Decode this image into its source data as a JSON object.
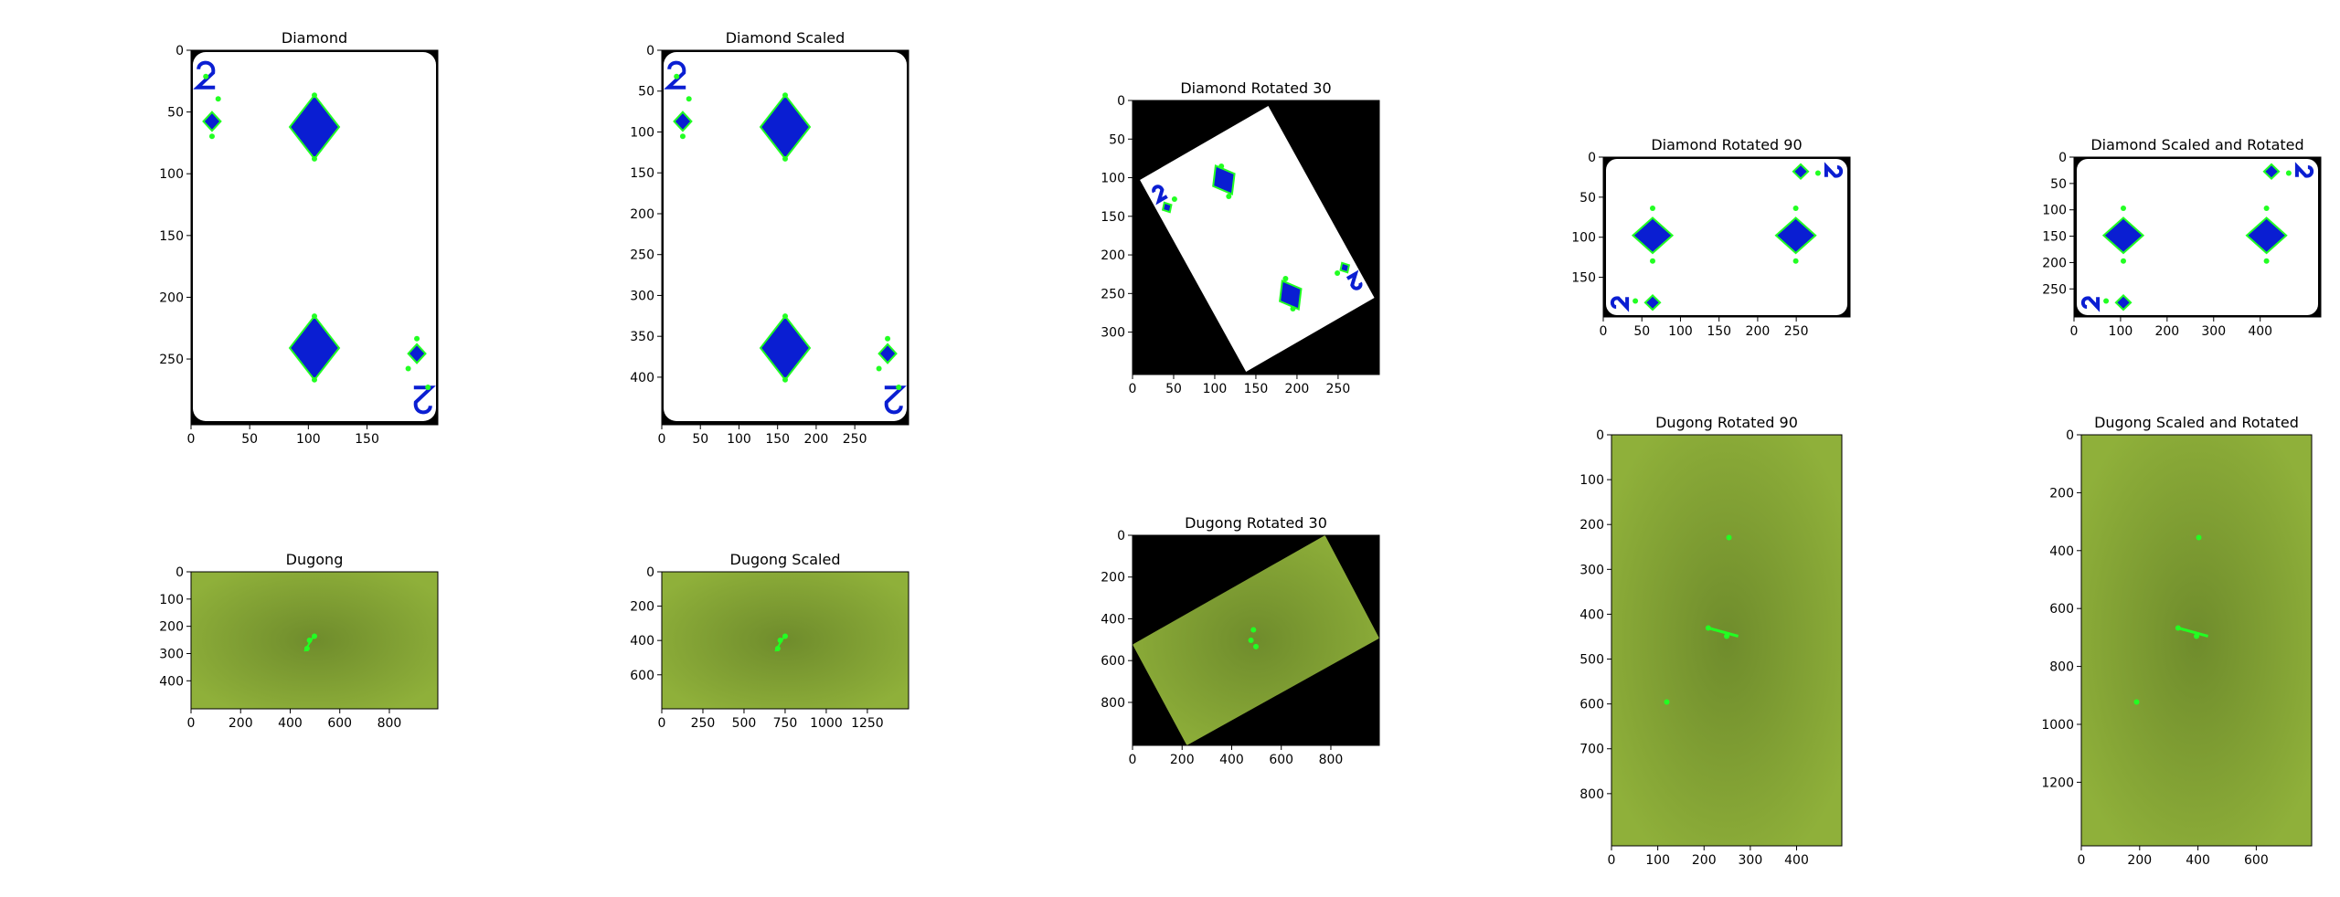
{
  "panels": [
    {
      "id": "diamond",
      "title": "Diamond",
      "kind": "card",
      "xticks": [
        "0",
        "50",
        "100",
        "150"
      ],
      "yticks": [
        "0",
        "50",
        "100",
        "150",
        "200",
        "250"
      ]
    },
    {
      "id": "diamond-scaled",
      "title": "Diamond Scaled",
      "kind": "card",
      "xticks": [
        "0",
        "50",
        "100",
        "150",
        "200",
        "250"
      ],
      "yticks": [
        "0",
        "50",
        "100",
        "150",
        "200",
        "250",
        "300",
        "350",
        "400"
      ]
    },
    {
      "id": "diamond-rot30",
      "title": "Diamond Rotated 30",
      "kind": "card-rot30",
      "xticks": [
        "0",
        "50",
        "100",
        "150",
        "200",
        "250"
      ],
      "yticks": [
        "0",
        "50",
        "100",
        "150",
        "200",
        "250",
        "300"
      ]
    },
    {
      "id": "diamond-rot90",
      "title": "Diamond Rotated 90",
      "kind": "card-rot90",
      "xticks": [
        "0",
        "50",
        "100",
        "150",
        "200",
        "250"
      ],
      "yticks": [
        "0",
        "50",
        "100",
        "150"
      ]
    },
    {
      "id": "diamond-scaled-rot",
      "title": "Diamond Scaled and Rotated",
      "kind": "card-rot90",
      "xticks": [
        "0",
        "100",
        "200",
        "300",
        "400"
      ],
      "yticks": [
        "0",
        "50",
        "100",
        "150",
        "200",
        "250"
      ]
    },
    {
      "id": "dugong",
      "title": "Dugong",
      "kind": "green",
      "xticks": [
        "0",
        "200",
        "400",
        "600",
        "800"
      ],
      "yticks": [
        "0",
        "100",
        "200",
        "300",
        "400"
      ]
    },
    {
      "id": "dugong-scaled",
      "title": "Dugong Scaled",
      "kind": "green",
      "xticks": [
        "0",
        "250",
        "500",
        "750",
        "1000",
        "1250"
      ],
      "yticks": [
        "0",
        "200",
        "400",
        "600"
      ]
    },
    {
      "id": "dugong-rot30",
      "title": "Dugong Rotated 30",
      "kind": "green-rot30",
      "xticks": [
        "0",
        "200",
        "400",
        "600",
        "800"
      ],
      "yticks": [
        "0",
        "200",
        "400",
        "600",
        "800"
      ]
    },
    {
      "id": "dugong-rot90",
      "title": "Dugong Rotated 90",
      "kind": "green-tall",
      "xticks": [
        "0",
        "100",
        "200",
        "300",
        "400"
      ],
      "yticks": [
        "0",
        "100",
        "200",
        "300",
        "400",
        "500",
        "600",
        "700",
        "800"
      ]
    },
    {
      "id": "dugong-scaled-rot",
      "title": "Dugong Scaled and Rotated",
      "kind": "green-tall",
      "xticks": [
        "0",
        "200",
        "400",
        "600"
      ],
      "yticks": [
        "0",
        "200",
        "400",
        "600",
        "800",
        "1000",
        "1200"
      ]
    }
  ],
  "colors": {
    "card_blue": "#0a1ed2",
    "keypoint_green": "#22ff22",
    "green_bg": "#8aaa36",
    "black_bg": "#000000"
  }
}
